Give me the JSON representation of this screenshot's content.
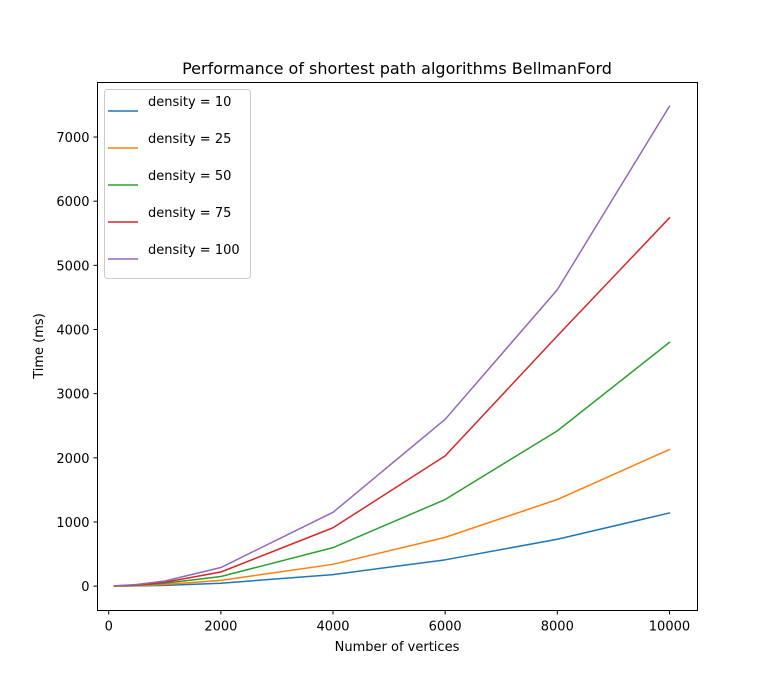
{
  "chart_data": {
    "type": "line",
    "title": "Performance of shortest path algorithms BellmanFord",
    "xlabel": "Number of vertices",
    "ylabel": "Time (ms)",
    "xlim": [
      -200,
      10500
    ],
    "ylim": [
      -380,
      7850
    ],
    "xticks": [
      0,
      2000,
      4000,
      6000,
      8000,
      10000
    ],
    "yticks": [
      0,
      1000,
      2000,
      3000,
      4000,
      5000,
      6000,
      7000
    ],
    "grid": false,
    "legend_position": "top-left",
    "x": [
      100,
      500,
      1000,
      2000,
      4000,
      6000,
      8000,
      10000
    ],
    "series": [
      {
        "name": "density = 10",
        "color": "#1f77b4",
        "values": [
          0,
          3,
          12,
          45,
          180,
          410,
          730,
          1140
        ]
      },
      {
        "name": "density = 25",
        "color": "#ff7f0e",
        "values": [
          1,
          6,
          25,
          90,
          340,
          760,
          1350,
          2130
        ]
      },
      {
        "name": "density = 50",
        "color": "#2ca02c",
        "values": [
          2,
          12,
          45,
          150,
          600,
          1350,
          2420,
          3800
        ]
      },
      {
        "name": "density = 75",
        "color": "#d62728",
        "values": [
          3,
          18,
          60,
          220,
          910,
          2030,
          3900,
          5740
        ]
      },
      {
        "name": "density = 100",
        "color": "#9467bd",
        "values": [
          4,
          25,
          80,
          290,
          1150,
          2600,
          4620,
          7480
        ]
      }
    ]
  }
}
